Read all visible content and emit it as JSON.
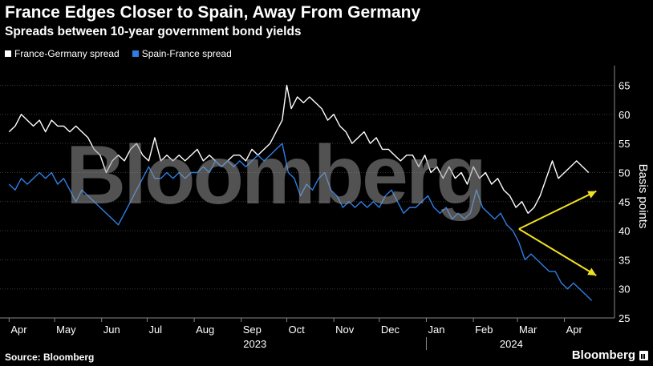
{
  "header": {
    "title": "France Edges Closer to Spain, Away From Germany",
    "subtitle": "Spreads between 10-year government bond yields"
  },
  "legend": [
    {
      "label": "France-Germany spread",
      "color": "#ffffff"
    },
    {
      "label": "Spain-France spread",
      "color": "#2d7fe6"
    }
  ],
  "footer": {
    "source": "Source: Bloomberg",
    "brand": "Bloomberg"
  },
  "watermark": "Bloomberg",
  "chart_data": {
    "type": "line",
    "ylabel": "Basis points",
    "ylim": [
      25,
      67
    ],
    "yticks": [
      25,
      30,
      35,
      40,
      45,
      50,
      55,
      60,
      65
    ],
    "xlim": [
      "2023-04-01",
      "2024-04-30"
    ],
    "xticks": [
      {
        "label": "Apr",
        "date": "2023-04-01"
      },
      {
        "label": "May",
        "date": "2023-05-01"
      },
      {
        "label": "Jun",
        "date": "2023-06-01"
      },
      {
        "label": "Jul",
        "date": "2023-07-01"
      },
      {
        "label": "Aug",
        "date": "2023-08-01"
      },
      {
        "label": "Sep",
        "date": "2023-09-01"
      },
      {
        "label": "Oct",
        "date": "2023-10-01"
      },
      {
        "label": "Nov",
        "date": "2023-11-01"
      },
      {
        "label": "Dec",
        "date": "2023-12-01"
      },
      {
        "label": "Jan",
        "date": "2024-01-01"
      },
      {
        "label": "Feb",
        "date": "2024-02-01"
      },
      {
        "label": "Mar",
        "date": "2024-03-01"
      },
      {
        "label": "Apr",
        "date": "2024-04-01"
      }
    ],
    "year_labels": [
      {
        "label": "2023",
        "date": "2023-09-10"
      },
      {
        "label": "2024",
        "date": "2024-02-26"
      }
    ],
    "year_divider_date": "2024-01-01",
    "series": [
      {
        "name": "France-Germany spread",
        "color": "#ffffff",
        "points": [
          [
            "2023-04-01",
            57
          ],
          [
            "2023-04-05",
            58
          ],
          [
            "2023-04-09",
            60
          ],
          [
            "2023-04-13",
            59
          ],
          [
            "2023-04-17",
            58
          ],
          [
            "2023-04-21",
            59
          ],
          [
            "2023-04-25",
            57
          ],
          [
            "2023-04-29",
            59
          ],
          [
            "2023-05-03",
            58
          ],
          [
            "2023-05-07",
            58
          ],
          [
            "2023-05-11",
            57
          ],
          [
            "2023-05-15",
            58
          ],
          [
            "2023-05-19",
            57
          ],
          [
            "2023-05-23",
            56
          ],
          [
            "2023-05-27",
            54
          ],
          [
            "2023-05-31",
            53
          ],
          [
            "2023-06-04",
            50
          ],
          [
            "2023-06-08",
            52
          ],
          [
            "2023-06-12",
            53
          ],
          [
            "2023-06-16",
            52
          ],
          [
            "2023-06-20",
            54
          ],
          [
            "2023-06-24",
            55
          ],
          [
            "2023-06-28",
            53
          ],
          [
            "2023-07-02",
            52
          ],
          [
            "2023-07-06",
            56
          ],
          [
            "2023-07-10",
            52
          ],
          [
            "2023-07-14",
            53
          ],
          [
            "2023-07-18",
            52
          ],
          [
            "2023-07-22",
            53
          ],
          [
            "2023-07-26",
            52
          ],
          [
            "2023-07-30",
            53
          ],
          [
            "2023-08-03",
            54
          ],
          [
            "2023-08-07",
            52
          ],
          [
            "2023-08-11",
            53
          ],
          [
            "2023-08-15",
            52
          ],
          [
            "2023-08-19",
            51
          ],
          [
            "2023-08-23",
            52
          ],
          [
            "2023-08-27",
            53
          ],
          [
            "2023-08-31",
            53
          ],
          [
            "2023-09-04",
            52
          ],
          [
            "2023-09-08",
            54
          ],
          [
            "2023-09-12",
            53
          ],
          [
            "2023-09-16",
            54
          ],
          [
            "2023-09-20",
            55
          ],
          [
            "2023-09-24",
            57
          ],
          [
            "2023-09-28",
            59
          ],
          [
            "2023-10-01",
            65
          ],
          [
            "2023-10-04",
            61
          ],
          [
            "2023-10-08",
            63
          ],
          [
            "2023-10-12",
            62
          ],
          [
            "2023-10-16",
            63
          ],
          [
            "2023-10-20",
            62
          ],
          [
            "2023-10-24",
            61
          ],
          [
            "2023-10-28",
            59
          ],
          [
            "2023-11-01",
            60
          ],
          [
            "2023-11-05",
            58
          ],
          [
            "2023-11-09",
            57
          ],
          [
            "2023-11-13",
            55
          ],
          [
            "2023-11-17",
            56
          ],
          [
            "2023-11-21",
            57
          ],
          [
            "2023-11-25",
            55
          ],
          [
            "2023-11-29",
            56
          ],
          [
            "2023-12-03",
            54
          ],
          [
            "2023-12-07",
            54
          ],
          [
            "2023-12-11",
            53
          ],
          [
            "2023-12-15",
            52
          ],
          [
            "2023-12-19",
            53
          ],
          [
            "2023-12-23",
            53
          ],
          [
            "2023-12-27",
            51
          ],
          [
            "2023-12-31",
            53
          ],
          [
            "2024-01-04",
            50
          ],
          [
            "2024-01-08",
            51
          ],
          [
            "2024-01-12",
            49
          ],
          [
            "2024-01-16",
            51
          ],
          [
            "2024-01-20",
            49
          ],
          [
            "2024-01-24",
            50
          ],
          [
            "2024-01-28",
            48
          ],
          [
            "2024-02-01",
            51
          ],
          [
            "2024-02-05",
            49
          ],
          [
            "2024-02-09",
            50
          ],
          [
            "2024-02-13",
            48
          ],
          [
            "2024-02-17",
            49
          ],
          [
            "2024-02-21",
            47
          ],
          [
            "2024-02-25",
            46
          ],
          [
            "2024-02-29",
            44
          ],
          [
            "2024-03-04",
            45
          ],
          [
            "2024-03-08",
            43
          ],
          [
            "2024-03-12",
            44
          ],
          [
            "2024-03-16",
            46
          ],
          [
            "2024-03-20",
            49
          ],
          [
            "2024-03-24",
            52
          ],
          [
            "2024-03-28",
            49
          ],
          [
            "2024-04-01",
            50
          ],
          [
            "2024-04-05",
            51
          ],
          [
            "2024-04-09",
            52
          ],
          [
            "2024-04-13",
            51
          ],
          [
            "2024-04-17",
            50
          ]
        ]
      },
      {
        "name": "Spain-France spread",
        "color": "#2d7fe6",
        "points": [
          [
            "2023-04-01",
            48
          ],
          [
            "2023-04-05",
            47
          ],
          [
            "2023-04-09",
            49
          ],
          [
            "2023-04-13",
            48
          ],
          [
            "2023-04-17",
            49
          ],
          [
            "2023-04-21",
            50
          ],
          [
            "2023-04-25",
            49
          ],
          [
            "2023-04-29",
            50
          ],
          [
            "2023-05-03",
            48
          ],
          [
            "2023-05-07",
            49
          ],
          [
            "2023-05-11",
            47
          ],
          [
            "2023-05-15",
            45
          ],
          [
            "2023-05-19",
            47
          ],
          [
            "2023-05-23",
            46
          ],
          [
            "2023-05-27",
            45
          ],
          [
            "2023-05-31",
            44
          ],
          [
            "2023-06-04",
            43
          ],
          [
            "2023-06-08",
            42
          ],
          [
            "2023-06-12",
            41
          ],
          [
            "2023-06-16",
            43
          ],
          [
            "2023-06-20",
            45
          ],
          [
            "2023-06-24",
            47
          ],
          [
            "2023-06-28",
            49
          ],
          [
            "2023-07-02",
            51
          ],
          [
            "2023-07-06",
            49
          ],
          [
            "2023-07-10",
            49
          ],
          [
            "2023-07-14",
            50
          ],
          [
            "2023-07-18",
            49
          ],
          [
            "2023-07-22",
            50
          ],
          [
            "2023-07-26",
            49
          ],
          [
            "2023-07-30",
            50
          ],
          [
            "2023-08-03",
            50
          ],
          [
            "2023-08-07",
            51
          ],
          [
            "2023-08-11",
            50
          ],
          [
            "2023-08-15",
            52
          ],
          [
            "2023-08-19",
            51
          ],
          [
            "2023-08-23",
            52
          ],
          [
            "2023-08-27",
            51
          ],
          [
            "2023-08-31",
            52
          ],
          [
            "2023-09-04",
            51
          ],
          [
            "2023-09-08",
            52
          ],
          [
            "2023-09-12",
            53
          ],
          [
            "2023-09-16",
            52
          ],
          [
            "2023-09-20",
            53
          ],
          [
            "2023-09-24",
            54
          ],
          [
            "2023-09-28",
            55
          ],
          [
            "2023-10-02",
            50
          ],
          [
            "2023-10-06",
            49
          ],
          [
            "2023-10-10",
            46
          ],
          [
            "2023-10-14",
            48
          ],
          [
            "2023-10-18",
            47
          ],
          [
            "2023-10-22",
            49
          ],
          [
            "2023-10-26",
            50
          ],
          [
            "2023-10-30",
            47
          ],
          [
            "2023-11-03",
            46
          ],
          [
            "2023-11-07",
            44
          ],
          [
            "2023-11-11",
            45
          ],
          [
            "2023-11-15",
            44
          ],
          [
            "2023-11-19",
            45
          ],
          [
            "2023-11-23",
            44
          ],
          [
            "2023-11-27",
            45
          ],
          [
            "2023-12-01",
            44
          ],
          [
            "2023-12-05",
            46
          ],
          [
            "2023-12-09",
            47
          ],
          [
            "2023-12-13",
            45
          ],
          [
            "2023-12-17",
            43
          ],
          [
            "2023-12-21",
            44
          ],
          [
            "2023-12-25",
            44
          ],
          [
            "2023-12-29",
            45
          ],
          [
            "2024-01-02",
            46
          ],
          [
            "2024-01-06",
            44
          ],
          [
            "2024-01-10",
            43
          ],
          [
            "2024-01-14",
            44
          ],
          [
            "2024-01-18",
            42
          ],
          [
            "2024-01-22",
            43
          ],
          [
            "2024-01-26",
            42
          ],
          [
            "2024-01-30",
            43
          ],
          [
            "2024-02-03",
            47
          ],
          [
            "2024-02-07",
            44
          ],
          [
            "2024-02-11",
            43
          ],
          [
            "2024-02-15",
            42
          ],
          [
            "2024-02-19",
            43
          ],
          [
            "2024-02-23",
            41
          ],
          [
            "2024-02-27",
            40
          ],
          [
            "2024-03-02",
            38
          ],
          [
            "2024-03-06",
            35
          ],
          [
            "2024-03-10",
            36
          ],
          [
            "2024-03-14",
            35
          ],
          [
            "2024-03-18",
            34
          ],
          [
            "2024-03-22",
            33
          ],
          [
            "2024-03-26",
            33
          ],
          [
            "2024-03-30",
            31
          ],
          [
            "2024-04-03",
            30
          ],
          [
            "2024-04-07",
            31
          ],
          [
            "2024-04-11",
            30
          ],
          [
            "2024-04-15",
            29
          ],
          [
            "2024-04-19",
            28
          ]
        ]
      }
    ],
    "annotations": [
      {
        "type": "arrow",
        "color": "#f0e020",
        "from": [
          "2024-03-02",
          40.3
        ],
        "to": [
          "2024-04-22",
          46.8
        ]
      },
      {
        "type": "arrow",
        "color": "#f0e020",
        "from": [
          "2024-03-02",
          40.3
        ],
        "to": [
          "2024-04-22",
          32.3
        ]
      }
    ]
  }
}
